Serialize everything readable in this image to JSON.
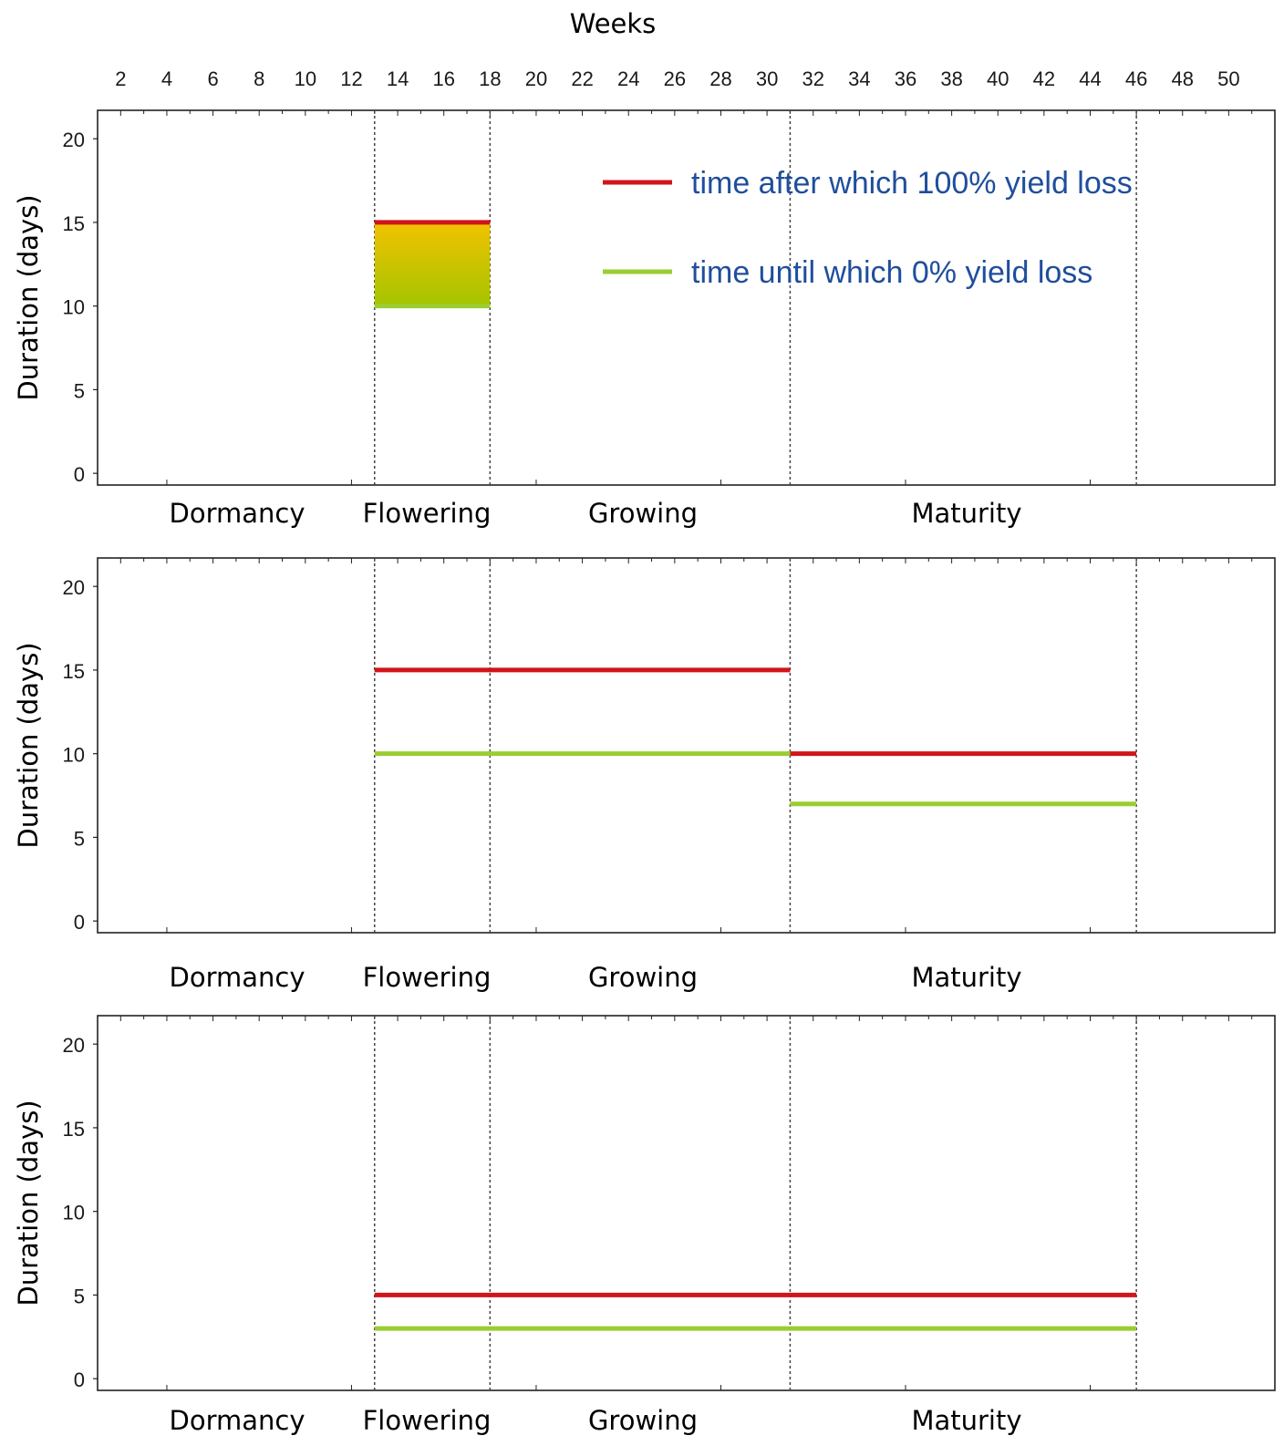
{
  "chart_data": {
    "type": "line",
    "x_title": "Weeks",
    "x_ticks": [
      "2",
      "4",
      "6",
      "8",
      "10",
      "12",
      "14",
      "16",
      "18",
      "20",
      "22",
      "24",
      "26",
      "28",
      "30",
      "32",
      "34",
      "36",
      "38",
      "40",
      "42",
      "44",
      "46",
      "48",
      "50"
    ],
    "xlim": [
      1,
      52
    ],
    "ylim": [
      -0.7,
      21.7
    ],
    "y_ticks": [
      "0",
      "5",
      "10",
      "15",
      "20"
    ],
    "ylabel": "Duration (days)",
    "phase_boundaries": [
      13,
      18,
      31,
      46
    ],
    "phase_labels": [
      "Dormancy",
      "Flowering",
      "Growing",
      "Maturity"
    ],
    "legend": {
      "placement": "top-right",
      "entries": [
        {
          "label": "time after which 100% yield loss",
          "color": "#d0151b"
        },
        {
          "label": "time until which 0% yield loss",
          "color": "#9acd32"
        }
      ]
    },
    "panels": [
      {
        "series": [
          {
            "name": "time after which 100% yield loss",
            "segments": [
              {
                "x": [
                  13,
                  18
                ],
                "y": 15
              }
            ]
          },
          {
            "name": "time until which 0% yield loss",
            "segments": [
              {
                "x": [
                  13,
                  18
                ],
                "y": 10
              }
            ]
          }
        ],
        "shaded_band": {
          "x": [
            13,
            18
          ],
          "y": [
            10,
            15
          ],
          "colors": [
            "#f2c200",
            "#a4c400"
          ]
        }
      },
      {
        "series": [
          {
            "name": "time after which 100% yield loss",
            "segments": [
              {
                "x": [
                  13,
                  31
                ],
                "y": 15
              },
              {
                "x": [
                  31,
                  46
                ],
                "y": 10
              }
            ]
          },
          {
            "name": "time until which 0% yield loss",
            "segments": [
              {
                "x": [
                  13,
                  31
                ],
                "y": 10
              },
              {
                "x": [
                  31,
                  46
                ],
                "y": 7
              }
            ]
          }
        ]
      },
      {
        "series": [
          {
            "name": "time after which 100% yield loss",
            "segments": [
              {
                "x": [
                  13,
                  46
                ],
                "y": 5
              }
            ]
          },
          {
            "name": "time until which 0% yield loss",
            "segments": [
              {
                "x": [
                  13,
                  46
                ],
                "y": 3
              }
            ]
          }
        ]
      }
    ]
  }
}
